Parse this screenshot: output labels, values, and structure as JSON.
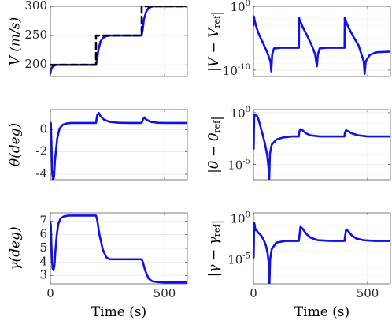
{
  "colors": {
    "response": "#1010e8",
    "reference": "#000000"
  },
  "chart_data": [
    {
      "id": "V",
      "type": "line",
      "ylabel": "V (m/s)",
      "xlabel": "",
      "xlim": [
        0,
        600
      ],
      "ylim": [
        180,
        300
      ],
      "yscale": "linear",
      "xticks": [
        0,
        500
      ],
      "xticklabels": [
        "",
        ""
      ],
      "yticks": [
        200,
        250,
        300
      ],
      "yticklabels": [
        "200",
        "250",
        "300"
      ],
      "grid": true,
      "series": [
        {
          "role": "response",
          "x": [
            0,
            2,
            5,
            10,
            20,
            30,
            50,
            80,
            120,
            160,
            200,
            205,
            210,
            220,
            230,
            245,
            260,
            300,
            350,
            400,
            405,
            410,
            420,
            430,
            445,
            460,
            500,
            550,
            600
          ],
          "y": [
            185,
            190,
            194,
            197,
            199,
            200,
            200,
            200,
            200,
            200,
            200,
            210,
            225,
            240,
            246,
            249,
            250,
            250,
            250,
            250,
            262,
            278,
            291,
            297,
            299.5,
            300,
            300,
            300,
            300
          ]
        },
        {
          "role": "reference",
          "dashed": true,
          "x": [
            0,
            200,
            200,
            400,
            400,
            600
          ],
          "y": [
            200,
            200,
            250,
            250,
            300,
            300
          ]
        }
      ]
    },
    {
      "id": "V_err",
      "type": "line",
      "ylabel": "|V − V_ref|",
      "xlabel": "",
      "xlim": [
        0,
        600
      ],
      "ylim": [
        -11,
        0
      ],
      "yscale": "log",
      "xticks": [
        0,
        500
      ],
      "xticklabels": [
        "",
        ""
      ],
      "yticks": [
        -10,
        0
      ],
      "yticklabels": [
        "10^-10",
        "10^0"
      ],
      "grid": true,
      "series": [
        {
          "role": "response",
          "log10_y": true,
          "x": [
            0,
            2,
            5,
            10,
            15,
            25,
            40,
            60,
            75,
            78,
            82,
            90,
            120,
            150,
            199,
            200,
            201,
            215,
            235,
            255,
            270,
            278,
            282,
            290,
            320,
            360,
            399,
            400,
            401,
            415,
            435,
            460,
            483,
            487,
            492,
            510,
            540,
            600
          ],
          "y": [
            -3,
            -1.6,
            -2.2,
            -2.9,
            -3.5,
            -4.5,
            -5.6,
            -7.2,
            -8.7,
            -10.2,
            -7.5,
            -6.6,
            -6.5,
            -6.5,
            -6.5,
            -1.8,
            -2.0,
            -3.2,
            -4.6,
            -6.1,
            -7.5,
            -9.4,
            -7.6,
            -6.6,
            -6.5,
            -6.5,
            -6.5,
            -1.8,
            -2.0,
            -3.2,
            -4.6,
            -6.1,
            -8.6,
            -10.6,
            -8.6,
            -7.6,
            -7.2,
            -7.1
          ]
        }
      ]
    },
    {
      "id": "theta",
      "type": "line",
      "ylabel": "θ(deg)",
      "xlabel": "",
      "xlim": [
        0,
        600
      ],
      "ylim": [
        -4.5,
        1.8
      ],
      "yscale": "linear",
      "xticks": [
        0,
        500
      ],
      "xticklabels": [
        "",
        ""
      ],
      "yticks": [
        -4,
        -2,
        0
      ],
      "yticklabels": [
        "-4",
        "-2",
        "0"
      ],
      "grid": true,
      "series": [
        {
          "role": "response",
          "x": [
            0,
            2,
            5,
            8,
            12,
            16,
            20,
            30,
            40,
            55,
            70,
            90,
            120,
            150,
            200,
            205,
            212,
            220,
            235,
            260,
            300,
            350,
            400,
            405,
            412,
            420,
            440,
            470,
            500,
            550,
            600
          ],
          "y": [
            -0.2,
            0.6,
            -1.5,
            -3.8,
            -4.6,
            -4.2,
            -2.8,
            -0.8,
            0.1,
            0.45,
            0.55,
            0.6,
            0.6,
            0.6,
            0.6,
            1.3,
            1.5,
            1.2,
            0.9,
            0.7,
            0.62,
            0.6,
            0.6,
            0.9,
            1.1,
            0.9,
            0.7,
            0.62,
            0.6,
            0.6,
            0.6
          ]
        }
      ]
    },
    {
      "id": "theta_err",
      "type": "line",
      "ylabel": "|θ − θ_ref|",
      "xlabel": "",
      "xlim": [
        0,
        600
      ],
      "ylim": [
        -6.5,
        0.3
      ],
      "yscale": "log",
      "xticks": [
        0,
        500
      ],
      "xticklabels": [
        "",
        ""
      ],
      "yticks": [
        -5,
        0
      ],
      "yticklabels": [
        "10^-5",
        "10^0"
      ],
      "grid": true,
      "series": [
        {
          "role": "response",
          "log10_y": true,
          "x": [
            0,
            1,
            3,
            6,
            10,
            15,
            20,
            25,
            30,
            40,
            50,
            60,
            66,
            69,
            72,
            80,
            100,
            130,
            170,
            199,
            200,
            205,
            215,
            230,
            250,
            290,
            340,
            399,
            400,
            405,
            415,
            430,
            460,
            500,
            560,
            600
          ],
          "y": [
            -1.5,
            -3.5,
            -0.5,
            -0.2,
            -0.2,
            -0.3,
            -0.5,
            -0.9,
            -1.3,
            -2.1,
            -3.0,
            -4.1,
            -5.3,
            -6.5,
            -4.0,
            -3.1,
            -2.6,
            -2.4,
            -2.3,
            -2.3,
            -1.9,
            -1.6,
            -1.7,
            -2.0,
            -2.2,
            -2.3,
            -2.3,
            -2.3,
            -2.0,
            -1.7,
            -1.8,
            -2.0,
            -2.2,
            -2.3,
            -2.3,
            -2.3
          ]
        }
      ]
    },
    {
      "id": "gamma",
      "type": "line",
      "ylabel": "γ(deg)",
      "xlabel": "Time (s)",
      "xlim": [
        0,
        600
      ],
      "ylim": [
        2.4,
        7.6
      ],
      "yscale": "linear",
      "xticks": [
        0,
        500
      ],
      "xticklabels": [
        "0",
        "500"
      ],
      "yticks": [
        3,
        4,
        5,
        6,
        7
      ],
      "yticklabels": [
        "3",
        "4",
        "5",
        "6",
        "7"
      ],
      "grid": true,
      "series": [
        {
          "role": "response",
          "x": [
            0,
            2,
            4,
            7,
            10,
            14,
            18,
            22,
            28,
            35,
            45,
            60,
            80,
            120,
            160,
            200,
            205,
            215,
            230,
            245,
            260,
            280,
            320,
            360,
            400,
            405,
            415,
            430,
            445,
            460,
            500,
            550,
            600
          ],
          "y": [
            6.9,
            6.7,
            5.5,
            4.2,
            3.5,
            3.4,
            3.8,
            4.8,
            6.0,
            6.8,
            7.2,
            7.35,
            7.4,
            7.4,
            7.4,
            7.4,
            7.1,
            6.0,
            4.9,
            4.35,
            4.2,
            4.2,
            4.2,
            4.2,
            4.2,
            4.0,
            3.4,
            2.8,
            2.6,
            2.55,
            2.5,
            2.5,
            2.5
          ]
        }
      ]
    },
    {
      "id": "gamma_err",
      "type": "line",
      "ylabel": "|γ − γ_ref|",
      "xlabel": "Time (s)",
      "xlim": [
        0,
        600
      ],
      "ylim": [
        -8,
        0.6
      ],
      "yscale": "log",
      "xticks": [
        0,
        500
      ],
      "xticklabels": [
        "0",
        "500"
      ],
      "yticks": [
        -5,
        0
      ],
      "yticklabels": [
        "10^-5",
        "10^0"
      ],
      "grid": true,
      "series": [
        {
          "role": "response",
          "log10_y": true,
          "x": [
            0,
            1,
            3,
            5,
            8,
            12,
            18,
            25,
            35,
            45,
            55,
            62,
            67,
            70,
            73,
            80,
            100,
            140,
            199,
            200,
            206,
            215,
            230,
            250,
            280,
            340,
            399,
            400,
            406,
            415,
            430,
            450,
            480,
            530,
            600
          ],
          "y": [
            -2,
            -4.8,
            -0.6,
            -0.8,
            -1.5,
            -1.4,
            -1.7,
            -1.9,
            -2.2,
            -2.7,
            -3.4,
            -4.3,
            -5.5,
            -8,
            -5.0,
            -3.8,
            -3.0,
            -2.8,
            -2.8,
            -2.5,
            -1.1,
            -1.3,
            -1.9,
            -2.4,
            -2.7,
            -2.8,
            -2.8,
            -2.5,
            -1.4,
            -1.6,
            -2.1,
            -2.5,
            -2.7,
            -2.8,
            -2.8
          ]
        }
      ]
    }
  ]
}
